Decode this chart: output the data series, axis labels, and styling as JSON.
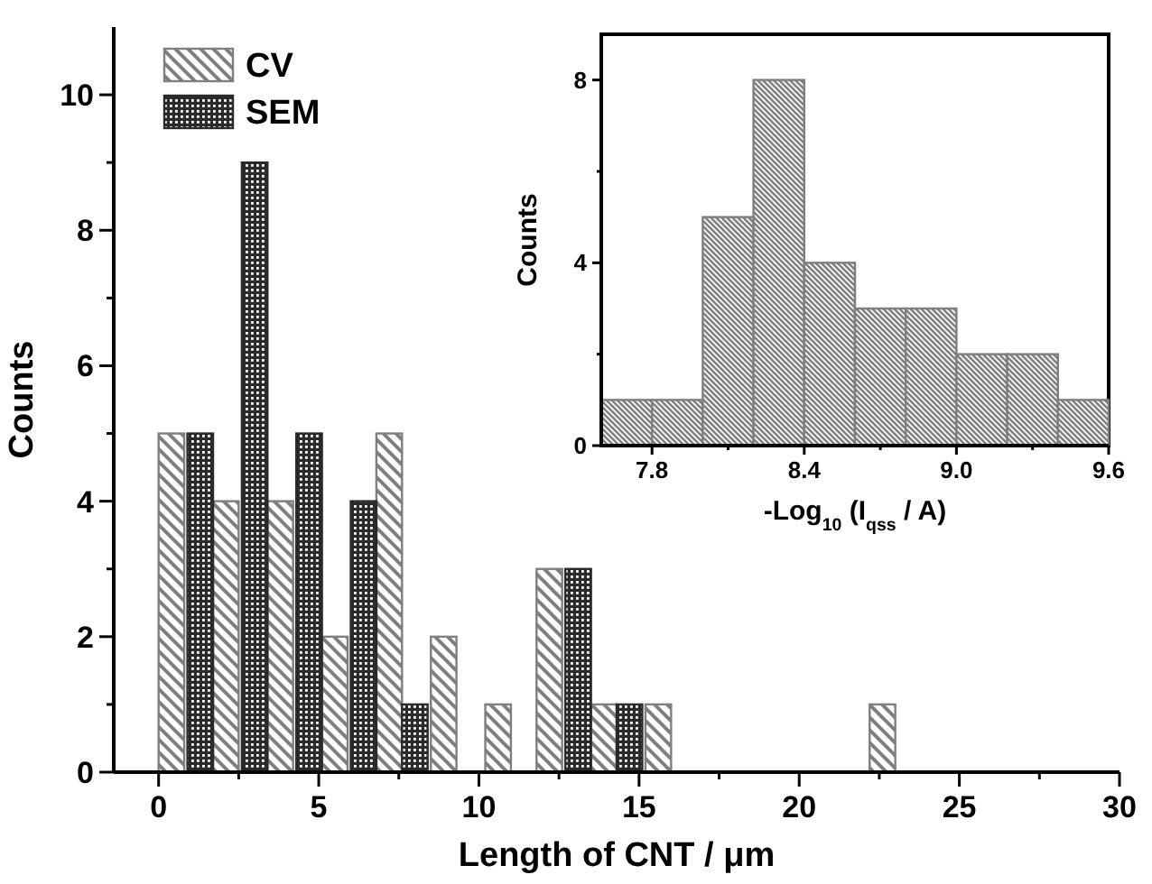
{
  "chart_data": [
    {
      "type": "bar",
      "xlabel": "Length of CNT / μm",
      "ylabel": "Counts",
      "series": [
        {
          "name": "CV",
          "color": "#7f7f7f",
          "x": [
            0.4,
            2.1,
            3.8,
            5.5,
            7.2,
            8.9,
            10.6,
            12.2,
            13.9,
            15.6,
            22.6
          ],
          "values": [
            5,
            4,
            4,
            2,
            5,
            2,
            1,
            3,
            1,
            1,
            1
          ]
        },
        {
          "name": "SEM",
          "color": "#2a2a2a",
          "x": [
            1.3,
            3.0,
            4.7,
            6.4,
            8.0,
            13.1,
            14.7
          ],
          "values": [
            5,
            9,
            5,
            4,
            1,
            3,
            1
          ]
        }
      ],
      "xlim": [
        -1.4,
        30
      ],
      "xticks": [
        0,
        {
          "value": 2.5,
          "label": null
        },
        5,
        {
          "value": 7.5,
          "label": null
        },
        10,
        {
          "value": 12.5,
          "label": null
        },
        15,
        {
          "value": 17.5,
          "label": null
        },
        20,
        {
          "value": 22.5,
          "label": null
        },
        25,
        {
          "value": 27.5,
          "label": null
        },
        30
      ],
      "ylim": [
        0,
        11
      ],
      "yticks": [
        0,
        {
          "value": 1,
          "label": null
        },
        2,
        {
          "value": 3,
          "label": null
        },
        4,
        {
          "value": 5,
          "label": null
        },
        6,
        {
          "value": 7,
          "label": null
        },
        8,
        {
          "value": 9,
          "label": null
        },
        10
      ],
      "legend": "top left"
    },
    {
      "type": "histogram",
      "xlabel": "-Log$_{10}$ (I$_{qss}$ / A)",
      "ylabel": "Counts",
      "bins": [
        7.6,
        7.8,
        8.0,
        8.2,
        8.4,
        8.6,
        8.8,
        9.0,
        9.2,
        9.4,
        9.6
      ],
      "values": [
        1,
        1,
        5,
        8,
        4,
        3,
        3,
        2,
        2,
        1
      ],
      "color": "#7f7f7f",
      "xlim": [
        7.6,
        9.6
      ],
      "xticks": [
        7.8,
        {
          "value": 8.1,
          "label": null
        },
        8.4,
        {
          "value": 8.7,
          "label": null
        },
        {
          "value": 9,
          "label": "9.0"
        },
        {
          "value": 9.3,
          "label": null
        },
        9.6
      ],
      "ylim": [
        0,
        9
      ],
      "yticks": [
        0,
        {
          "value": 2,
          "label": null
        },
        4,
        {
          "value": 6,
          "label": null
        },
        8
      ]
    }
  ]
}
